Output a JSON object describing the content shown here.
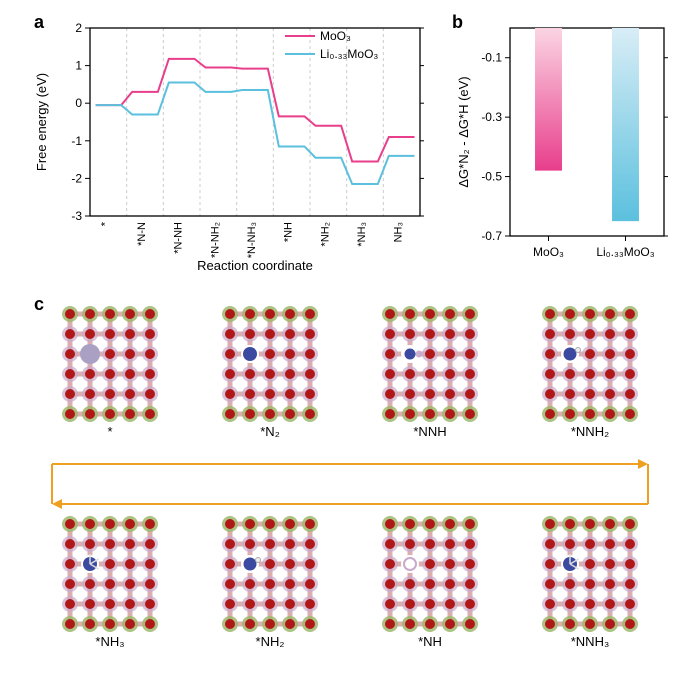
{
  "panel_a": {
    "label": "a",
    "type": "line-step",
    "xlabel": "Reaction coordinate",
    "ylabel": "Free energy (eV)",
    "ylim": [
      -3,
      2
    ],
    "ytick_step": 1,
    "xcats": [
      "*",
      "*N-N",
      "*N-NH",
      "*N-NH₂",
      "*N-NH₃",
      "*NH",
      "*NH₂",
      "*NH₃",
      "NH₃"
    ],
    "series": [
      {
        "name": "MoO₃",
        "color": "#e83e8c",
        "y": [
          -0.05,
          0.3,
          1.18,
          0.95,
          0.92,
          -0.35,
          -0.6,
          -1.55,
          -0.9
        ]
      },
      {
        "name": "Li₀.₃₃MoO₃",
        "color": "#5bc0de",
        "y": [
          -0.05,
          -0.3,
          0.55,
          0.3,
          0.35,
          -1.15,
          -1.45,
          -2.15,
          -1.4
        ]
      }
    ],
    "grid_color": "#cccccc",
    "line_width": 2,
    "background": "#ffffff",
    "label_fontsize": 13
  },
  "panel_b": {
    "label": "b",
    "type": "bar",
    "ylabel": "ΔG*N₂ - ΔG*H (eV)",
    "ylim": [
      -0.7,
      0.0
    ],
    "ytick_step": 0.2,
    "categories": [
      "MoO₃",
      "Li₀.₃₃MoO₃"
    ],
    "values": [
      -0.48,
      -0.65
    ],
    "bar_colors_top": [
      "#fbd5e3",
      "#d8edf6"
    ],
    "bar_colors_bot": [
      "#e83e8c",
      "#5bc0de"
    ],
    "bar_width": 0.35,
    "background": "#ffffff",
    "label_fontsize": 13
  },
  "panel_c": {
    "label": "c",
    "type": "lattice-series",
    "top_labels": [
      "*",
      "*N₂",
      "*NNH",
      "*NNH₂"
    ],
    "bottom_labels": [
      "*NH₃",
      "*NH₂",
      "*NH",
      "*NNH₃"
    ],
    "arrow_color": "#f0a020",
    "lattice": {
      "rows": 6,
      "cols": 5,
      "atom_outer": "#9fb86f",
      "atom_mid": "#c9a9cc",
      "atom_inner": "#b01818",
      "bond_color": "#c47a7a",
      "center_big": "#a9a0c4",
      "center_big_row2": "#3b4aa0",
      "accent_row2": "#3b4aa0",
      "hollow": "#ffffff"
    }
  }
}
